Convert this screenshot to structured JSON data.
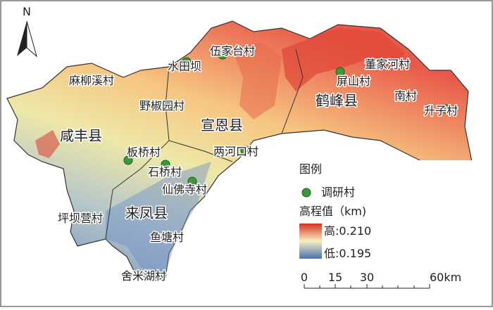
{
  "north": "N",
  "counties": [
    {
      "label": "咸丰县"
    },
    {
      "label": "宣恩县"
    },
    {
      "label": "来凤县"
    },
    {
      "label": "鹤峰县"
    }
  ],
  "villages": [
    {
      "label": "伍家台村"
    },
    {
      "label": "水田坝"
    },
    {
      "label": "麻柳溪村"
    },
    {
      "label": "野椒园村"
    },
    {
      "label": "板桥村"
    },
    {
      "label": "两河口村"
    },
    {
      "label": "石桥村"
    },
    {
      "label": "仙佛寺村"
    },
    {
      "label": "坪坝营村"
    },
    {
      "label": "鱼塘村"
    },
    {
      "label": "舍米湖村"
    },
    {
      "label": "董家河村"
    },
    {
      "label": "屏山村"
    },
    {
      "label": "南村"
    },
    {
      "label": "升子村"
    }
  ],
  "legend": {
    "title": "图例",
    "marker_label": "调研村",
    "elevation_title": "高程值（km)",
    "high": "高:0.210",
    "low": "低:0.195"
  },
  "scale": {
    "ticks": [
      "0",
      "15",
      "30",
      "60km"
    ]
  }
}
